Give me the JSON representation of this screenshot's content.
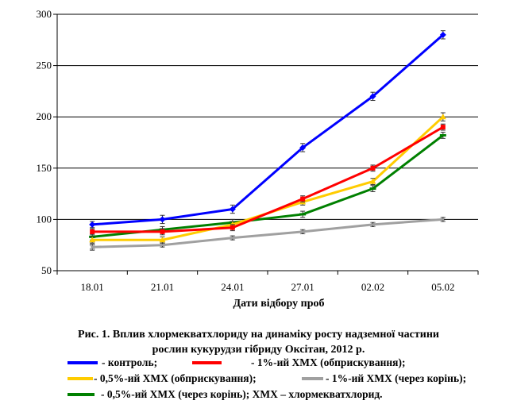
{
  "chart_data": {
    "type": "line",
    "title": "Рис. 1. Вплив хлормекватхлориду на динаміку росту надземної частини рослин кукурудзи гібриду Оксітан, 2012 р.",
    "caption_lines": [
      "Рис. 1. Вплив хлормекватхлориду на динаміку росту надземної частини",
      "рослин кукурудзи гібриду Оксітан, 2012 р."
    ],
    "xlabel": "Дати відбору проб",
    "ylabel": "",
    "categories": [
      "18.01",
      "21.01",
      "24.01",
      "27.01",
      "02.02",
      "05.02"
    ],
    "ylim": [
      50,
      300
    ],
    "yticks": [
      50,
      100,
      150,
      200,
      250,
      300
    ],
    "grid": "horizontal",
    "series": [
      {
        "name": "контроль",
        "color": "#0000ff",
        "marker": "diamond",
        "values": [
          95,
          100,
          110,
          170,
          220,
          280
        ],
        "errors": [
          3,
          4,
          4,
          4,
          4,
          4
        ]
      },
      {
        "name": "1%-ий ХМХ (обприскування)",
        "color": "#ff0000",
        "marker": "square",
        "values": [
          88,
          88,
          92,
          120,
          150,
          190
        ],
        "errors": [
          3,
          3,
          3,
          3,
          3,
          3
        ]
      },
      {
        "name": "0,5%-ий ХМХ (обприскування)",
        "color": "#ffcc00",
        "marker": "triangle",
        "values": [
          80,
          80,
          95,
          117,
          137,
          200
        ],
        "errors": [
          3,
          3,
          3,
          3,
          3,
          4
        ]
      },
      {
        "name": "1%-ий ХМХ (через корінь)",
        "color": "#a0a0a0",
        "marker": "x",
        "values": [
          73,
          75,
          82,
          88,
          95,
          100
        ],
        "errors": [
          3,
          2,
          2,
          2,
          2,
          2
        ]
      },
      {
        "name": "0,5%-ий ХМХ (через корінь)",
        "color": "#008000",
        "marker": "dash",
        "values": [
          83,
          90,
          97,
          105,
          130,
          182
        ],
        "errors": [
          3,
          3,
          3,
          3,
          3,
          3
        ]
      }
    ]
  },
  "legend": {
    "rows": [
      [
        {
          "series": 0,
          "text": "-    контроль;"
        },
        {
          "series": 1,
          "text": "- 1%-ий ХМХ (обприскування);"
        }
      ],
      [
        {
          "series": 2,
          "text": "-   0,5%-ий ХМХ (обприскування);"
        },
        {
          "series": 3,
          "text": "- 1%-ий ХМХ (через корінь);"
        }
      ],
      [
        {
          "series": 4,
          "text": "-    0,5%-ий ХМХ (через корінь); ХМХ – хлормекватхлорид."
        }
      ]
    ]
  }
}
